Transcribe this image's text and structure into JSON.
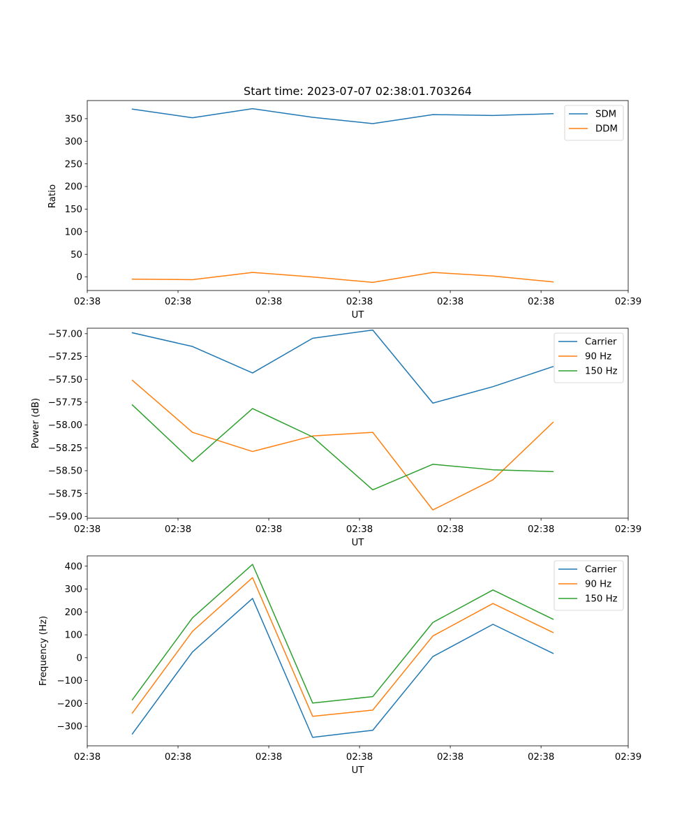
{
  "figure": {
    "title": "Start time: 2023-07-07 02:38:01.703264"
  },
  "colors": {
    "blue": "#1f77b4",
    "orange": "#ff7f0e",
    "green": "#2ca02c"
  },
  "chart_data": [
    {
      "type": "line",
      "title": "Start time: 2023-07-07 02:38:01.703264",
      "xlabel": "UT",
      "ylabel": "Ratio",
      "x": [
        1,
        2,
        3,
        4,
        5,
        6,
        7,
        8
      ],
      "xlim": [
        0.25,
        9.25
      ],
      "xticks": [
        0.25,
        1.76,
        3.27,
        4.78,
        6.29,
        7.8,
        9.25
      ],
      "xtick_labels": [
        "02:38",
        "02:38",
        "02:38",
        "02:38",
        "02:38",
        "02:38",
        "02:39"
      ],
      "ylim": [
        -30,
        390
      ],
      "yticks": [
        0,
        50,
        100,
        150,
        200,
        250,
        300,
        350
      ],
      "ytick_labels": [
        "0",
        "50",
        "100",
        "150",
        "200",
        "250",
        "300",
        "350"
      ],
      "legend": "top-right",
      "series": [
        {
          "name": "SDM",
          "color": "blue",
          "values": [
            371,
            352,
            372,
            353,
            339,
            359,
            357,
            361
          ]
        },
        {
          "name": "DDM",
          "color": "orange",
          "values": [
            -5,
            -6,
            10,
            0,
            -12,
            10,
            2,
            -11
          ]
        }
      ]
    },
    {
      "type": "line",
      "title": "",
      "xlabel": "UT",
      "ylabel": "Power (dB)",
      "x": [
        1,
        2,
        3,
        4,
        5,
        6,
        7,
        8
      ],
      "xlim": [
        0.25,
        9.25
      ],
      "xticks": [
        0.25,
        1.76,
        3.27,
        4.78,
        6.29,
        7.8,
        9.25
      ],
      "xtick_labels": [
        "02:38",
        "02:38",
        "02:38",
        "02:38",
        "02:38",
        "02:38",
        "02:39"
      ],
      "ylim": [
        -59.02,
        -56.94
      ],
      "yticks": [
        -59.0,
        -58.75,
        -58.5,
        -58.25,
        -58.0,
        -57.75,
        -57.5,
        -57.25,
        -57.0
      ],
      "ytick_labels": [
        "−59.00",
        "−58.75",
        "−58.50",
        "−58.25",
        "−58.00",
        "−57.75",
        "−57.50",
        "−57.25",
        "−57.00"
      ],
      "legend": "top-right",
      "series": [
        {
          "name": "Carrier",
          "color": "blue",
          "values": [
            -56.99,
            -57.14,
            -57.43,
            -57.05,
            -56.96,
            -57.76,
            -57.58,
            -57.36
          ]
        },
        {
          "name": "90 Hz",
          "color": "orange",
          "values": [
            -57.51,
            -58.08,
            -58.29,
            -58.12,
            -58.08,
            -58.93,
            -58.6,
            -57.97
          ]
        },
        {
          "name": "150 Hz",
          "color": "green",
          "values": [
            -57.78,
            -58.4,
            -57.82,
            -58.13,
            -58.71,
            -58.43,
            -58.49,
            -58.51
          ]
        }
      ]
    },
    {
      "type": "line",
      "title": "",
      "xlabel": "UT",
      "ylabel": "Frequency (Hz)",
      "x": [
        1,
        2,
        3,
        4,
        5,
        6,
        7,
        8
      ],
      "xlim": [
        0.25,
        9.25
      ],
      "xticks": [
        0.25,
        1.76,
        3.27,
        4.78,
        6.29,
        7.8,
        9.25
      ],
      "xtick_labels": [
        "02:38",
        "02:38",
        "02:38",
        "02:38",
        "02:38",
        "02:38",
        "02:39"
      ],
      "ylim": [
        -385,
        445
      ],
      "yticks": [
        -300,
        -200,
        -100,
        0,
        100,
        200,
        300,
        400
      ],
      "ytick_labels": [
        "−300",
        "−200",
        "−100",
        "0",
        "100",
        "200",
        "300",
        "400"
      ],
      "legend": "top-right",
      "series": [
        {
          "name": "Carrier",
          "color": "blue",
          "values": [
            -333,
            25,
            259,
            -348,
            -317,
            5,
            146,
            19
          ]
        },
        {
          "name": "90 Hz",
          "color": "orange",
          "values": [
            -242,
            115,
            350,
            -256,
            -229,
            95,
            237,
            110
          ]
        },
        {
          "name": "150 Hz",
          "color": "green",
          "values": [
            -184,
            174,
            408,
            -198,
            -170,
            154,
            296,
            168
          ]
        }
      ]
    }
  ]
}
